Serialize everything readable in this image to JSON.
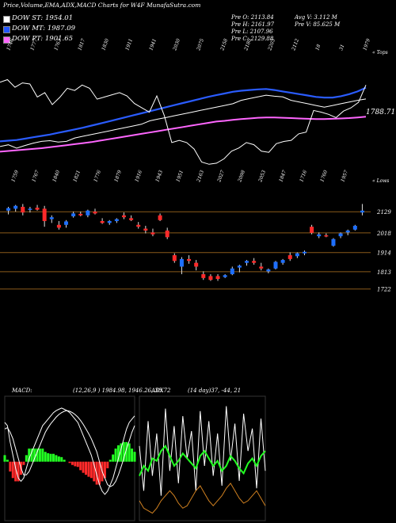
{
  "header": {
    "title": "Price,Volume,EMA,ADX,MACD Charts for W4F MunafaSutra.com"
  },
  "legend": [
    {
      "label": "DOW ST: 1954.01",
      "color": "#ffffff"
    },
    {
      "label": "DOW MT: 1987.09",
      "color": "#2255ff"
    },
    {
      "label": "DOW PT: 1901.65",
      "color": "#ff66ff"
    }
  ],
  "stats": {
    "pre_open": "Pre  O: 2113.84",
    "avg_vol": "Avg V: 3.112  M",
    "pre_high": "Pre  H: 2161.97",
    "pre_vol": "Pre  V: 85.625  M",
    "pre_low": "Pre  L: 2107.96",
    "pre_close": "Pre  C: 2129.88"
  },
  "colors": {
    "up": "#1e6fff",
    "down": "#ff2a2a",
    "level": "#8a5a1a",
    "ema_white": "#ffffff",
    "ema_blue": "#2a5cff",
    "ema_pink": "#ff66ff"
  },
  "chart_data": [
    {
      "type": "line",
      "title": "Price, EMA",
      "series": [
        {
          "name": "DOW ST",
          "values": [
            1815,
            1820,
            1810,
            1818,
            1825,
            1830,
            1832,
            1828,
            1830,
            1840,
            1845,
            1850,
            1855,
            1860,
            1865,
            1870,
            1875,
            1880,
            1890,
            1895,
            1900,
            1905,
            1910,
            1915,
            1920,
            1925,
            1930,
            1935,
            1940,
            1950,
            1955,
            1960,
            1965,
            1962,
            1960,
            1950,
            1945,
            1940,
            1935,
            1930,
            1935,
            1940,
            1945,
            1950,
            1954
          ]
        },
        {
          "name": "DOW MT",
          "values": [
            1830,
            1832,
            1834,
            1838,
            1842,
            1846,
            1850,
            1855,
            1860,
            1865,
            1870,
            1876,
            1882,
            1888,
            1894,
            1900,
            1906,
            1912,
            1918,
            1924,
            1930,
            1936,
            1942,
            1948,
            1954,
            1960,
            1965,
            1970,
            1975,
            1978,
            1980,
            1982,
            1983,
            1980,
            1976,
            1972,
            1968,
            1964,
            1960,
            1958,
            1958,
            1962,
            1968,
            1976,
            1987
          ]
        },
        {
          "name": "DOW PT",
          "values": [
            1800,
            1802,
            1804,
            1806,
            1808,
            1810,
            1813,
            1816,
            1819,
            1822,
            1825,
            1828,
            1832,
            1836,
            1840,
            1844,
            1848,
            1852,
            1856,
            1860,
            1864,
            1868,
            1872,
            1876,
            1880,
            1884,
            1888,
            1890,
            1893,
            1895,
            1897,
            1899,
            1900,
            1900,
            1899,
            1898,
            1897,
            1896,
            1895,
            1895,
            1896,
            1897,
            1898,
            1900,
            1902
          ]
        }
      ],
      "value_label": "1788.71",
      "top_tick_labels": [
        "1746",
        "1777",
        "1763",
        "1817",
        "1830",
        "1911",
        "1941",
        "2030",
        "2075",
        "2158",
        "2180",
        "2203",
        "2112",
        "18",
        "31",
        "1979"
      ],
      "bottom_tick_labels": [
        "1759",
        "1767",
        "1840",
        "1821",
        "1776",
        "1879",
        "1916",
        "1943",
        "1951",
        "2163",
        "2027",
        "2098",
        "2053",
        "1847",
        "1716",
        "1760",
        "1957"
      ],
      "top_right_label": "« Tops",
      "bottom_right_label": "« Lows"
    },
    {
      "type": "candlestick",
      "title": "Price candles",
      "levels": [
        2129,
        2018,
        1914,
        1813,
        1722
      ],
      "candles": [
        {
          "o": 2135,
          "h": 2155,
          "l": 2115,
          "c": 2148
        },
        {
          "o": 2145,
          "h": 2165,
          "l": 2130,
          "c": 2160
        },
        {
          "o": 2155,
          "h": 2170,
          "l": 2110,
          "c": 2125
        },
        {
          "o": 2140,
          "h": 2155,
          "l": 2125,
          "c": 2145
        },
        {
          "o": 2150,
          "h": 2165,
          "l": 2135,
          "c": 2140
        },
        {
          "o": 2145,
          "h": 2160,
          "l": 2050,
          "c": 2080
        },
        {
          "o": 2090,
          "h": 2110,
          "l": 2070,
          "c": 2100
        },
        {
          "o": 2060,
          "h": 2080,
          "l": 2035,
          "c": 2045
        },
        {
          "o": 2060,
          "h": 2085,
          "l": 2045,
          "c": 2078
        },
        {
          "o": 2105,
          "h": 2130,
          "l": 2098,
          "c": 2120
        },
        {
          "o": 2118,
          "h": 2130,
          "l": 2105,
          "c": 2110
        },
        {
          "o": 2110,
          "h": 2140,
          "l": 2100,
          "c": 2135
        },
        {
          "o": 2130,
          "h": 2145,
          "l": 2115,
          "c": 2120
        },
        {
          "o": 2080,
          "h": 2095,
          "l": 2065,
          "c": 2070
        },
        {
          "o": 2070,
          "h": 2085,
          "l": 2060,
          "c": 2080
        },
        {
          "o": 2080,
          "h": 2095,
          "l": 2070,
          "c": 2090
        },
        {
          "o": 2110,
          "h": 2125,
          "l": 2090,
          "c": 2100
        },
        {
          "o": 2095,
          "h": 2110,
          "l": 2080,
          "c": 2085
        },
        {
          "o": 2060,
          "h": 2075,
          "l": 2040,
          "c": 2050
        },
        {
          "o": 2040,
          "h": 2055,
          "l": 2015,
          "c": 2030
        },
        {
          "o": 2020,
          "h": 2040,
          "l": 2000,
          "c": 2010
        },
        {
          "o": 2110,
          "h": 2120,
          "l": 2080,
          "c": 2085
        },
        {
          "o": 2030,
          "h": 2045,
          "l": 1985,
          "c": 1995
        },
        {
          "o": 1900,
          "h": 1910,
          "l": 1860,
          "c": 1870
        },
        {
          "o": 1840,
          "h": 1890,
          "l": 1800,
          "c": 1880
        },
        {
          "o": 1880,
          "h": 1900,
          "l": 1855,
          "c": 1870
        },
        {
          "o": 1860,
          "h": 1875,
          "l": 1820,
          "c": 1840
        },
        {
          "o": 1800,
          "h": 1815,
          "l": 1770,
          "c": 1780
        },
        {
          "o": 1790,
          "h": 1800,
          "l": 1765,
          "c": 1770
        },
        {
          "o": 1790,
          "h": 1800,
          "l": 1765,
          "c": 1775
        },
        {
          "o": 1785,
          "h": 1800,
          "l": 1780,
          "c": 1795
        },
        {
          "o": 1800,
          "h": 1840,
          "l": 1795,
          "c": 1830
        },
        {
          "o": 1835,
          "h": 1850,
          "l": 1810,
          "c": 1845
        },
        {
          "o": 1860,
          "h": 1875,
          "l": 1845,
          "c": 1870
        },
        {
          "o": 1870,
          "h": 1885,
          "l": 1850,
          "c": 1860
        },
        {
          "o": 1840,
          "h": 1860,
          "l": 1820,
          "c": 1830
        },
        {
          "o": 1815,
          "h": 1830,
          "l": 1805,
          "c": 1825
        },
        {
          "o": 1830,
          "h": 1870,
          "l": 1825,
          "c": 1865
        },
        {
          "o": 1860,
          "h": 1880,
          "l": 1850,
          "c": 1875
        },
        {
          "o": 1900,
          "h": 1915,
          "l": 1870,
          "c": 1880
        },
        {
          "o": 1895,
          "h": 1915,
          "l": 1885,
          "c": 1910
        },
        {
          "o": 1910,
          "h": 1925,
          "l": 1900,
          "c": 1918
        },
        {
          "o": 2050,
          "h": 2060,
          "l": 2010,
          "c": 2018
        },
        {
          "o": 2000,
          "h": 2020,
          "l": 1990,
          "c": 2010
        },
        {
          "o": 2005,
          "h": 2015,
          "l": 1995,
          "c": 2000
        },
        {
          "o": 1950,
          "h": 1990,
          "l": 1945,
          "c": 1985
        },
        {
          "o": 2000,
          "h": 2020,
          "l": 1990,
          "c": 2015
        },
        {
          "o": 2020,
          "h": 2035,
          "l": 2005,
          "c": 2030
        },
        {
          "o": 2035,
          "h": 2060,
          "l": 2030,
          "c": 2055
        },
        {
          "o": 2125,
          "h": 2170,
          "l": 2110,
          "c": 2135
        }
      ]
    },
    {
      "type": "line",
      "title": "MACD",
      "label": "MACD:",
      "params": "(12,26,9 ) 1984.98,  1946.26,  38.72",
      "series": [
        {
          "name": "MACD",
          "values": [
            60,
            55,
            30,
            10,
            -10,
            -25,
            -30,
            -25,
            -10,
            5,
            15,
            25,
            35,
            45,
            55,
            60,
            65,
            70,
            75,
            78,
            80,
            82,
            80,
            78,
            75,
            70,
            65,
            60,
            50,
            40,
            30,
            20,
            10,
            -5,
            -20,
            -35,
            -45,
            -50,
            -45,
            -35,
            -25,
            -10,
            5,
            20,
            35,
            50,
            60,
            65,
            70
          ]
        },
        {
          "name": "Signal",
          "values": [
            50,
            52,
            45,
            35,
            20,
            5,
            -10,
            -20,
            -20,
            -15,
            -5,
            5,
            15,
            25,
            35,
            45,
            52,
            58,
            63,
            68,
            72,
            75,
            77,
            78,
            77,
            75,
            72,
            68,
            63,
            57,
            50,
            43,
            35,
            25,
            15,
            0,
            -15,
            -25,
            -35,
            -38,
            -36,
            -30,
            -20,
            -8,
            5,
            20,
            32,
            45,
            55
          ]
        }
      ]
    },
    {
      "type": "line",
      "title": "ADX",
      "label": "ADX",
      "params": "(14 day)37,  -44,  21",
      "series": [
        {
          "name": "+DI",
          "values": [
            30,
            12,
            40,
            18,
            35,
            10,
            45,
            20,
            38,
            15,
            42,
            25,
            36,
            12,
            44,
            22,
            40,
            18,
            35,
            14,
            46,
            24,
            39,
            16,
            43,
            28,
            37,
            13,
            41,
            20
          ]
        },
        {
          "name": "-DI",
          "values": [
            18,
            22,
            20,
            25,
            24,
            28,
            30,
            26,
            22,
            24,
            27,
            25,
            23,
            21,
            26,
            28,
            25,
            22,
            24,
            20,
            22,
            26,
            24,
            21,
            19,
            23,
            25,
            22,
            26,
            28
          ]
        },
        {
          "name": "ADX",
          "values": [
            8,
            5,
            4,
            3,
            5,
            8,
            10,
            12,
            10,
            7,
            5,
            6,
            9,
            12,
            14,
            11,
            8,
            6,
            8,
            10,
            13,
            15,
            12,
            9,
            7,
            8,
            10,
            12,
            9,
            6
          ]
        }
      ]
    }
  ]
}
